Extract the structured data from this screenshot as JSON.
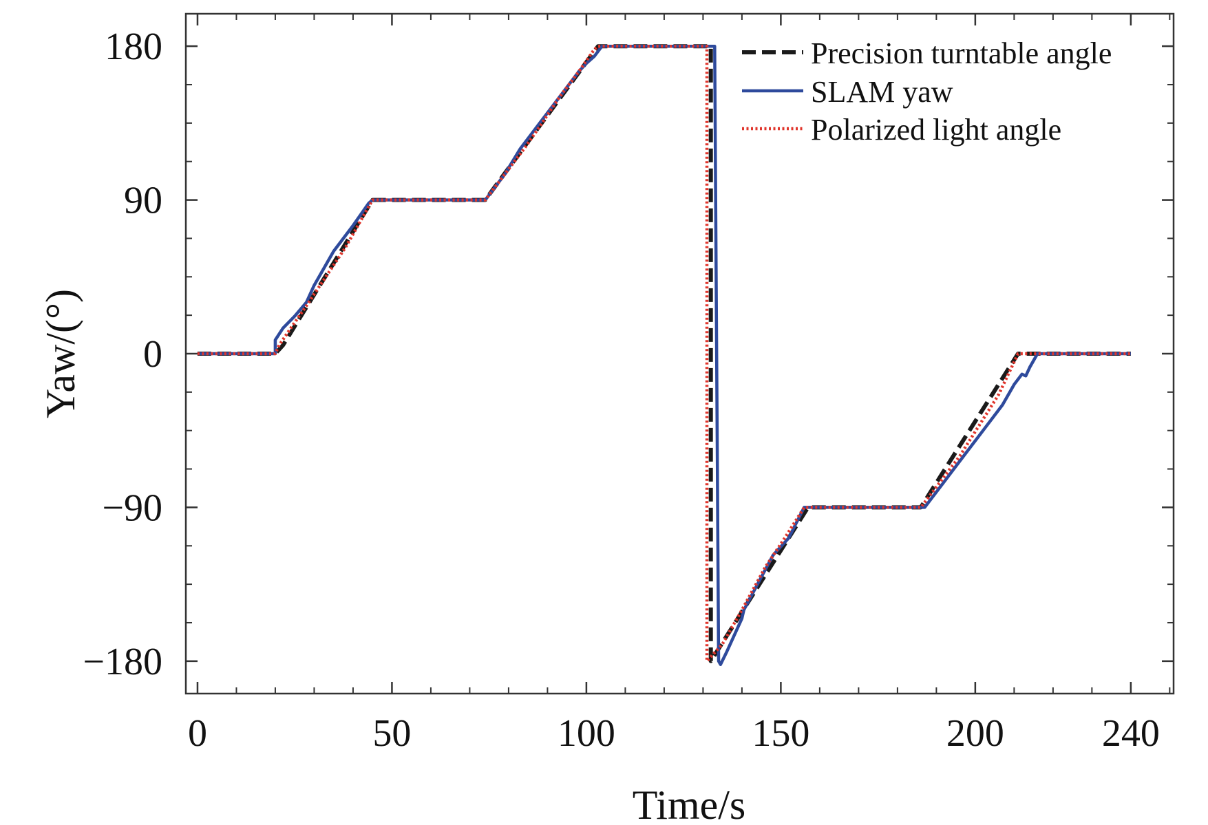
{
  "chart_data": {
    "type": "line",
    "title": "",
    "xlabel": "Time/s",
    "ylabel": "Yaw/(°)",
    "xlim": [
      -3,
      251
    ],
    "ylim": [
      -199,
      199
    ],
    "xticks": [
      0,
      50,
      100,
      150,
      200,
      240
    ],
    "xtick_labels": [
      "0",
      "50",
      "100",
      "150",
      "200",
      "240"
    ],
    "yticks": [
      180,
      90,
      0,
      -90,
      -180
    ],
    "ytick_labels": [
      "180",
      "90",
      "0",
      "−90",
      "−180"
    ],
    "grid": false,
    "legend_position": "top-right",
    "series": [
      {
        "name": "Precision turntable angle",
        "color": "#1a1a1a",
        "style": "dashed",
        "points": [
          [
            0,
            0
          ],
          [
            20,
            0
          ],
          [
            22,
            5
          ],
          [
            45,
            90
          ],
          [
            74,
            90
          ],
          [
            103,
            180
          ],
          [
            132,
            180
          ],
          [
            132,
            -180
          ],
          [
            157,
            -90
          ],
          [
            186,
            -90
          ],
          [
            211,
            0
          ],
          [
            240,
            0
          ]
        ]
      },
      {
        "name": "SLAM yaw",
        "color": "#2e4a9c",
        "style": "solid",
        "points": [
          [
            0,
            0
          ],
          [
            20,
            0
          ],
          [
            20,
            8
          ],
          [
            22,
            15
          ],
          [
            25,
            22
          ],
          [
            28,
            30
          ],
          [
            30,
            40
          ],
          [
            35,
            60
          ],
          [
            40,
            75
          ],
          [
            44,
            88
          ],
          [
            45,
            90
          ],
          [
            74,
            90
          ],
          [
            79,
            105
          ],
          [
            83,
            120
          ],
          [
            88,
            135
          ],
          [
            93,
            150
          ],
          [
            98,
            165
          ],
          [
            100,
            170
          ],
          [
            102,
            174
          ],
          [
            104,
            180
          ],
          [
            133,
            180
          ],
          [
            134,
            -180
          ],
          [
            134.5,
            -182
          ],
          [
            136,
            -175
          ],
          [
            138,
            -165
          ],
          [
            140,
            -155
          ],
          [
            140.5,
            -150
          ],
          [
            144,
            -135
          ],
          [
            148,
            -118
          ],
          [
            152,
            -108
          ],
          [
            156,
            -90
          ],
          [
            187,
            -90
          ],
          [
            192,
            -75
          ],
          [
            197,
            -60
          ],
          [
            202,
            -45
          ],
          [
            207,
            -30
          ],
          [
            210,
            -18
          ],
          [
            212,
            -12
          ],
          [
            213,
            -13
          ],
          [
            214,
            -8
          ],
          [
            216,
            0
          ],
          [
            240,
            0
          ]
        ]
      },
      {
        "name": "Polarized light angle",
        "color": "#e0352b",
        "style": "dotted",
        "points": [
          [
            0,
            0
          ],
          [
            20,
            0
          ],
          [
            21,
            5
          ],
          [
            24,
            15
          ],
          [
            28,
            28
          ],
          [
            33,
            45
          ],
          [
            38,
            62
          ],
          [
            42,
            78
          ],
          [
            45,
            90
          ],
          [
            74,
            90
          ],
          [
            78,
            102
          ],
          [
            84,
            120
          ],
          [
            88,
            133
          ],
          [
            93,
            150
          ],
          [
            98,
            165
          ],
          [
            102,
            178
          ],
          [
            103,
            180
          ],
          [
            131,
            180
          ],
          [
            131,
            -180
          ],
          [
            135,
            -170
          ],
          [
            140,
            -150
          ],
          [
            146,
            -125
          ],
          [
            151,
            -108
          ],
          [
            156,
            -90
          ],
          [
            186,
            -90
          ],
          [
            190,
            -78
          ],
          [
            196,
            -60
          ],
          [
            201,
            -42
          ],
          [
            206,
            -24
          ],
          [
            211,
            0
          ],
          [
            240,
            0
          ]
        ]
      }
    ]
  }
}
